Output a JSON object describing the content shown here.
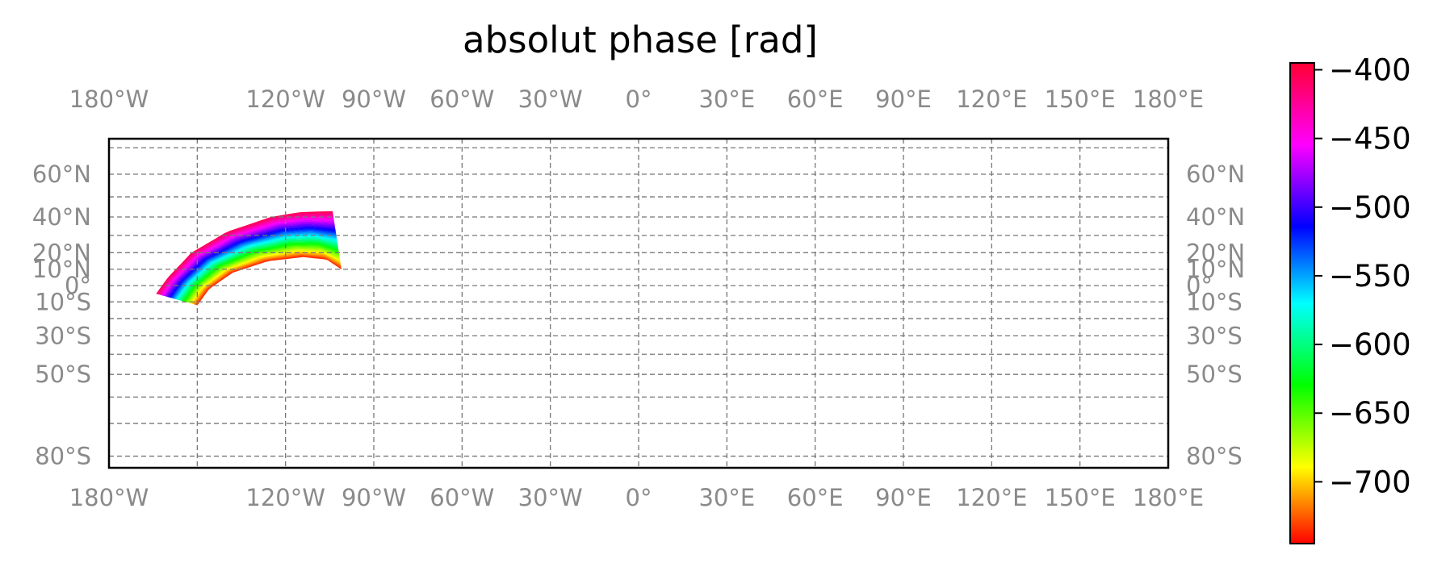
{
  "title": "absolut phase [rad]",
  "map": {
    "projection": "Miller cylindrical",
    "lon_ticks": [
      -180,
      -120,
      -90,
      -60,
      -30,
      0,
      30,
      60,
      90,
      120,
      150,
      180
    ],
    "lon_labels": [
      "180°W",
      "120°W",
      "90°W",
      "60°W",
      "30°W",
      "0°",
      "30°E",
      "60°E",
      "90°E",
      "120°E",
      "150°E",
      "180°E"
    ],
    "lat_ticks": [
      60,
      40,
      20,
      10,
      0,
      -10,
      -30,
      -50,
      -80
    ],
    "lat_labels": [
      "60°N",
      "40°N",
      "20°N",
      "10°N",
      "0°",
      "10°S",
      "30°S",
      "50°S",
      "80°S"
    ],
    "extra_gridlines_lat": [
      70,
      50,
      30,
      -20,
      -40,
      -60,
      -70
    ],
    "gridlines": "dashed"
  },
  "data_region": {
    "description_type": "phase field swath",
    "outer_arc_lonlat": [
      [
        -164,
        -5
      ],
      [
        -160,
        5
      ],
      [
        -152,
        20
      ],
      [
        -140,
        32
      ],
      [
        -125,
        40
      ],
      [
        -115,
        42.5
      ],
      [
        -104,
        43
      ]
    ],
    "inner_arc_lonlat": [
      [
        -150,
        -12
      ],
      [
        -146,
        -2
      ],
      [
        -138,
        8
      ],
      [
        -126,
        15
      ],
      [
        -114,
        17.5
      ],
      [
        -106,
        16
      ],
      [
        -101,
        10
      ]
    ],
    "value_range": [
      -745,
      -395
    ],
    "outer_edge_value": -400,
    "inner_edge_value": -740
  },
  "colorbar": {
    "colormap": "hsv",
    "min": -745,
    "max": -395,
    "ticks": [
      -400,
      -450,
      -500,
      -550,
      -600,
      -650,
      -700
    ],
    "tick_labels": [
      "−400",
      "−450",
      "−500",
      "−550",
      "−600",
      "−650",
      "−700"
    ]
  }
}
